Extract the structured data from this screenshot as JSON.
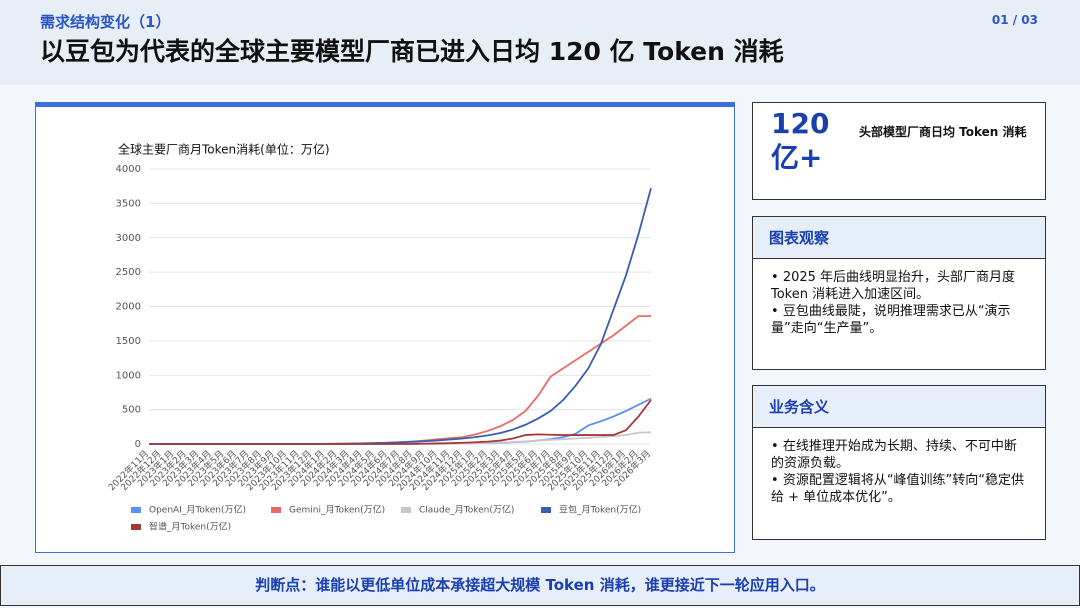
{
  "header": {
    "section": "需求结构变化（1）",
    "title": "以豆包为代表的全球主要模型厂商已进入日均 120 亿 Token 消耗",
    "page": "01 / 03"
  },
  "chart_data": {
    "type": "line",
    "title": "全球主要厂商月Token消耗(单位：万亿)",
    "categories": [
      "2022年11月",
      "2022年12月",
      "2023年1月",
      "2023年2月",
      "2023年3月",
      "2023年4月",
      "2023年5月",
      "2023年6月",
      "2023年7月",
      "2023年8月",
      "2023年9月",
      "2023年10月",
      "2023年11月",
      "2023年12月",
      "2024年1月",
      "2024年2月",
      "2024年3月",
      "2024年4月",
      "2024年5月",
      "2024年6月",
      "2024年7月",
      "2024年8月",
      "2024年9月",
      "2024年10月",
      "2024年11月",
      "2024年12月",
      "2025年1月",
      "2025年2月",
      "2025年3月",
      "2025年4月",
      "2025年5月",
      "2025年6月",
      "2025年7月",
      "2025年8月",
      "2025年9月",
      "2025年10月",
      "2025年11月",
      "2025年12月",
      "2026年1月",
      "2026年2月",
      "2026年3月"
    ],
    "series": [
      {
        "name": "OpenAI_月Token(万亿)",
        "color": "#5b8ff0",
        "values": [
          0,
          0,
          0,
          0,
          0,
          0,
          0,
          0,
          0,
          0,
          0,
          0,
          0,
          0,
          0,
          0,
          0,
          0,
          0,
          0,
          2,
          3,
          4,
          6,
          8,
          10,
          12,
          15,
          18,
          25,
          35,
          50,
          70,
          100,
          150,
          270,
          330,
          400,
          480,
          570,
          660
        ]
      },
      {
        "name": "Gemini_月Token(万亿)",
        "color": "#ea6b66",
        "values": [
          0,
          0,
          0,
          0,
          0,
          0,
          0,
          0,
          0,
          0,
          0,
          0,
          0,
          1,
          2,
          3,
          5,
          8,
          12,
          18,
          26,
          36,
          50,
          68,
          85,
          100,
          140,
          190,
          260,
          350,
          480,
          700,
          980,
          1100,
          1220,
          1340,
          1460,
          1580,
          1720,
          1860,
          1860
        ]
      },
      {
        "name": "Claude_月Token(万亿)",
        "color": "#c8c8cc",
        "values": [
          0,
          0,
          0,
          0,
          0,
          0,
          0,
          0,
          0,
          0,
          0,
          0,
          0,
          0,
          0,
          0,
          0,
          0,
          0,
          0,
          0,
          0,
          2,
          3,
          5,
          7,
          10,
          14,
          20,
          28,
          38,
          50,
          60,
          70,
          80,
          90,
          100,
          115,
          130,
          165,
          170
        ]
      },
      {
        "name": "豆包_月Token(万亿)",
        "color": "#3a5db0",
        "values": [
          0,
          0,
          0,
          0,
          0,
          0,
          0,
          0,
          0,
          0,
          0,
          0,
          0,
          0,
          2,
          3,
          5,
          8,
          12,
          18,
          25,
          33,
          42,
          52,
          65,
          80,
          100,
          125,
          160,
          210,
          280,
          370,
          480,
          640,
          850,
          1100,
          1450,
          1950,
          2450,
          3050,
          3720
        ]
      },
      {
        "name": "智谱_月Token(万亿)",
        "color": "#a33a3a",
        "values": [
          0,
          0,
          0,
          0,
          0,
          0,
          0,
          0,
          0,
          0,
          0,
          0,
          0,
          0,
          0,
          0,
          0,
          0,
          0,
          0,
          2,
          3,
          5,
          8,
          12,
          18,
          25,
          35,
          50,
          80,
          130,
          140,
          135,
          130,
          130,
          130,
          130,
          130,
          200,
          400,
          640
        ]
      }
    ],
    "ylim": [
      0,
      4000
    ],
    "yticks": [
      0,
      500,
      1000,
      1500,
      2000,
      2500,
      3000,
      3500,
      4000
    ],
    "grid": true
  },
  "highlight": {
    "value": "120亿+",
    "label": "头部模型厂商日均 Token 消耗"
  },
  "observation": {
    "title": "图表观察",
    "bullets": [
      "2025 年后曲线明显抬升，头部厂商月度 Token 消耗进入加速区间。",
      "豆包曲线最陡，说明推理需求已从“演示量”走向“生产量”。"
    ]
  },
  "implication": {
    "title": "业务含义",
    "bullets": [
      "在线推理开始成为长期、持续、不可中断的资源负载。",
      "资源配置逻辑将从“峰值训练”转向“稳定供给 + 单位成本优化”。"
    ]
  },
  "footer": "判断点：谁能以更低单位成本承接超大规模 Token 消耗，谁更接近下一轮应用入口。"
}
